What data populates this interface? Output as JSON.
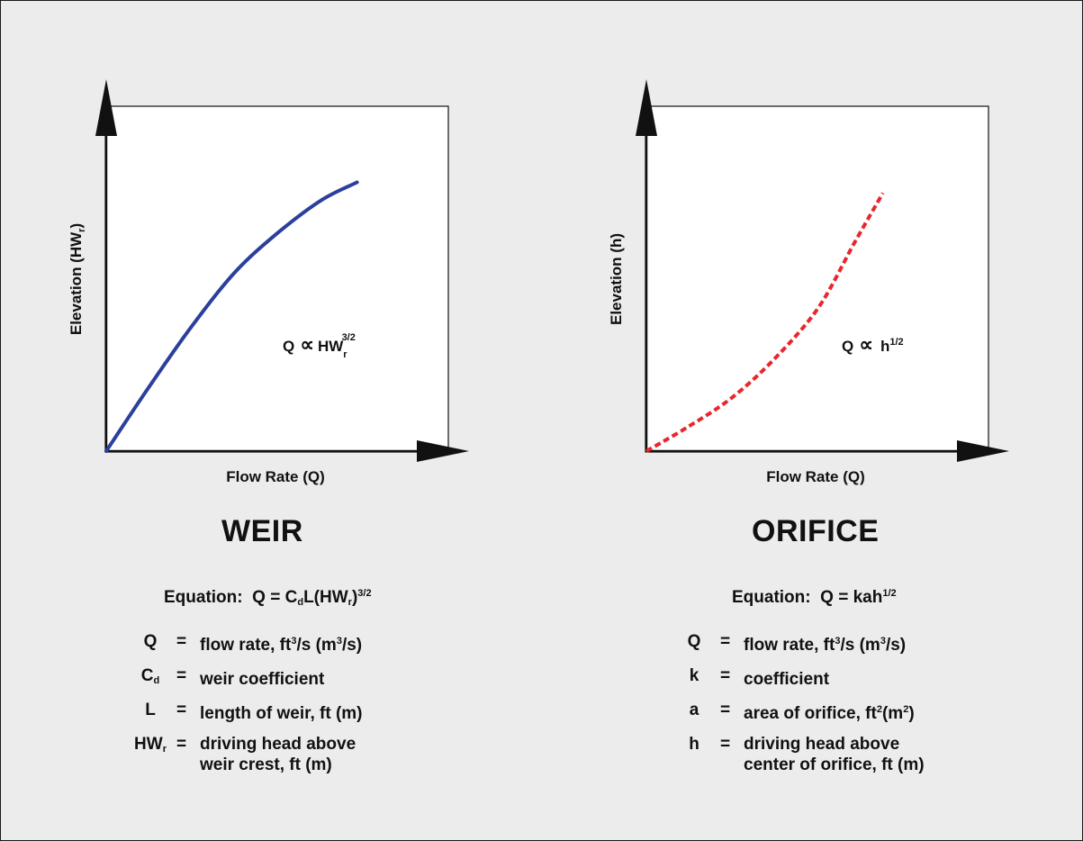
{
  "chart_data": [
    {
      "type": "line",
      "title": "WEIR",
      "xlabel": "Flow Rate (Q)",
      "ylabel_base": "Elevation (HW",
      "ylabel_sub": "r",
      "ylabel_end": ")",
      "annotation": {
        "prefix": "Q",
        "relation": "∝",
        "var": "HW",
        "sub": "r",
        "sup": "3/2"
      },
      "axis_ticks": "none",
      "grid": false,
      "legend": "none",
      "series": [
        {
          "style": "solid",
          "color": "#2b3f9c",
          "points": [
            [
              0,
              0
            ],
            [
              0.12,
              0.18
            ],
            [
              0.24,
              0.35
            ],
            [
              0.36,
              0.5
            ],
            [
              0.48,
              0.61
            ],
            [
              0.6,
              0.7
            ],
            [
              0.7,
              0.75
            ]
          ]
        }
      ],
      "equation": {
        "label": "Equation:",
        "text": "Q = C",
        "sub1": "d",
        "mid": "L(HW",
        "sub2": "r",
        "close": ")",
        "sup": "3/2"
      },
      "variables": [
        {
          "symbol": "Q",
          "symbol_sub": "",
          "eq": "=",
          "pre": "flow rate, ft",
          "sup1": "3",
          "mid": "/s (m",
          "sup2": "3",
          "post": "/s)"
        },
        {
          "symbol": "C",
          "symbol_sub": "d",
          "eq": "=",
          "pre": "weir coefficient",
          "sup1": "",
          "mid": "",
          "sup2": "",
          "post": ""
        },
        {
          "symbol": "L",
          "symbol_sub": "",
          "eq": "=",
          "pre": "length of weir, ft (m)",
          "sup1": "",
          "mid": "",
          "sup2": "",
          "post": ""
        },
        {
          "symbol": "HW",
          "symbol_sub": "r",
          "eq": "=",
          "pre": "driving head above\nweir crest, ft (m)",
          "sup1": "",
          "mid": "",
          "sup2": "",
          "post": ""
        }
      ]
    },
    {
      "type": "line",
      "title": "ORIFICE",
      "xlabel": "Flow Rate (Q)",
      "ylabel_base": "Elevation (h)",
      "ylabel_sub": "",
      "ylabel_end": "",
      "annotation": {
        "prefix": "Q",
        "relation": "∝",
        "var": "h",
        "sub": "",
        "sup": "1/2"
      },
      "axis_ticks": "none",
      "grid": false,
      "legend": "none",
      "series": [
        {
          "style": "dashed",
          "color": "#e8262c",
          "points": [
            [
              0,
              0
            ],
            [
              0.12,
              0.07
            ],
            [
              0.24,
              0.15
            ],
            [
              0.36,
              0.26
            ],
            [
              0.48,
              0.4
            ],
            [
              0.58,
              0.58
            ],
            [
              0.66,
              0.72
            ]
          ]
        }
      ],
      "equation": {
        "label": "Equation:",
        "text": "Q = kah",
        "sub1": "",
        "mid": "",
        "sub2": "",
        "close": "",
        "sup": "1/2"
      },
      "variables": [
        {
          "symbol": "Q",
          "symbol_sub": "",
          "eq": "=",
          "pre": "flow rate, ft",
          "sup1": "3",
          "mid": "/s (m",
          "sup2": "3",
          "post": "/s)"
        },
        {
          "symbol": "k",
          "symbol_sub": "",
          "eq": "=",
          "pre": "coefficient",
          "sup1": "",
          "mid": "",
          "sup2": "",
          "post": ""
        },
        {
          "symbol": "a",
          "symbol_sub": "",
          "eq": "=",
          "pre": "area of orifice, ft",
          "sup1": "2",
          "mid": "(m",
          "sup2": "2",
          "post": ")"
        },
        {
          "symbol": "h",
          "symbol_sub": "",
          "eq": "=",
          "pre": "driving head above\ncenter of orifice, ft (m)",
          "sup1": "",
          "mid": "",
          "sup2": "",
          "post": ""
        }
      ]
    }
  ]
}
